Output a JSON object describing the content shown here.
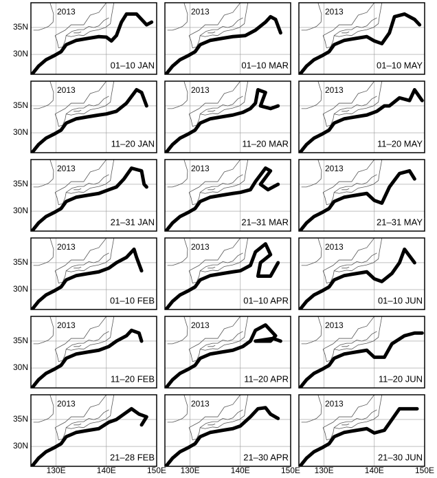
{
  "year": "2013",
  "lon_range": [
    125,
    150
  ],
  "lat_range": [
    26.3,
    39.6
  ],
  "lon_ticks": [
    {
      "value": 130,
      "label": "130E"
    },
    {
      "value": 140,
      "label": "140E"
    },
    {
      "value": 150,
      "label": "150E"
    }
  ],
  "lat_ticks": [
    {
      "value": 35,
      "label": "35N"
    },
    {
      "value": 30,
      "label": "30N"
    }
  ],
  "panels": [
    {
      "period": "01–10 JAN",
      "path": [
        [
          125.3,
          26.4
        ],
        [
          126.5,
          27.8
        ],
        [
          128,
          29
        ],
        [
          129.5,
          29.7
        ],
        [
          131,
          30.5
        ],
        [
          132,
          31.8
        ],
        [
          134,
          32.6
        ],
        [
          136.5,
          33
        ],
        [
          138.5,
          33.3
        ],
        [
          140,
          33.2
        ],
        [
          141,
          32.5
        ],
        [
          142,
          33.5
        ],
        [
          143,
          36
        ],
        [
          144,
          37.5
        ],
        [
          146,
          37.5
        ],
        [
          148,
          35.5
        ],
        [
          149,
          36
        ]
      ]
    },
    {
      "period": "01–10 MAR",
      "path": [
        [
          125.3,
          26.4
        ],
        [
          126.5,
          27.8
        ],
        [
          128,
          29
        ],
        [
          129.5,
          29.7
        ],
        [
          131,
          30.5
        ],
        [
          132,
          31.8
        ],
        [
          134,
          32.6
        ],
        [
          136.5,
          33
        ],
        [
          138.5,
          33.3
        ],
        [
          141,
          33.5
        ],
        [
          143,
          34.5
        ],
        [
          145,
          36
        ],
        [
          146,
          37
        ],
        [
          147,
          36.5
        ],
        [
          148,
          34
        ]
      ]
    },
    {
      "period": "01–10 MAY",
      "path": [
        [
          125.3,
          26.4
        ],
        [
          126.5,
          27.8
        ],
        [
          128,
          29
        ],
        [
          129.5,
          29.7
        ],
        [
          131,
          30.5
        ],
        [
          132,
          31.8
        ],
        [
          134,
          32.6
        ],
        [
          136.5,
          33
        ],
        [
          138.5,
          33.3
        ],
        [
          140,
          32.5
        ],
        [
          141.5,
          32
        ],
        [
          143,
          34
        ],
        [
          144,
          37
        ],
        [
          146,
          37.5
        ],
        [
          148,
          36.5
        ],
        [
          149,
          35.5
        ]
      ]
    },
    {
      "period": "11–20 JAN",
      "path": [
        [
          125.3,
          26.4
        ],
        [
          126.5,
          27.8
        ],
        [
          128,
          29
        ],
        [
          129.5,
          29.7
        ],
        [
          131,
          30.5
        ],
        [
          132,
          31.8
        ],
        [
          134,
          32.6
        ],
        [
          136.5,
          33
        ],
        [
          138.5,
          33.3
        ],
        [
          140,
          33.5
        ],
        [
          142,
          34
        ],
        [
          144,
          35.5
        ],
        [
          146,
          38
        ],
        [
          147,
          37.5
        ],
        [
          148,
          35
        ]
      ]
    },
    {
      "period": "11–20 MAR",
      "path": [
        [
          125.3,
          26.4
        ],
        [
          126.5,
          27.8
        ],
        [
          128,
          29
        ],
        [
          129.5,
          29.7
        ],
        [
          131,
          30.5
        ],
        [
          132,
          31.8
        ],
        [
          134,
          32.6
        ],
        [
          136.5,
          33
        ],
        [
          138.5,
          33.3
        ],
        [
          140.5,
          33.8
        ],
        [
          142,
          34.5
        ],
        [
          143,
          35.5
        ],
        [
          143.5,
          38
        ],
        [
          145,
          37.5
        ],
        [
          144,
          35
        ],
        [
          146,
          34.5
        ],
        [
          147.5,
          35
        ]
      ]
    },
    {
      "period": "11–20 MAY",
      "path": [
        [
          125.3,
          26.4
        ],
        [
          126.5,
          27.8
        ],
        [
          128,
          29
        ],
        [
          129.5,
          29.7
        ],
        [
          131,
          30.5
        ],
        [
          132,
          31.8
        ],
        [
          134,
          32.6
        ],
        [
          136.5,
          33
        ],
        [
          138.5,
          33.3
        ],
        [
          140.5,
          34
        ],
        [
          142,
          35
        ],
        [
          143,
          35
        ],
        [
          145,
          36.5
        ],
        [
          147,
          36
        ],
        [
          148,
          38
        ],
        [
          149.5,
          36
        ]
      ]
    },
    {
      "period": "21–31 JAN",
      "path": [
        [
          125.3,
          26.4
        ],
        [
          126.5,
          27.8
        ],
        [
          128,
          29
        ],
        [
          129.5,
          29.7
        ],
        [
          131,
          30.5
        ],
        [
          132,
          31.8
        ],
        [
          134,
          32.6
        ],
        [
          136.5,
          33
        ],
        [
          138.5,
          33.3
        ],
        [
          140.5,
          34
        ],
        [
          142,
          34.5
        ],
        [
          143.5,
          36
        ],
        [
          145,
          38
        ],
        [
          147,
          37.5
        ],
        [
          147.5,
          35
        ],
        [
          148,
          34.5
        ]
      ]
    },
    {
      "period": "21–31 MAR",
      "path": [
        [
          125.3,
          26.4
        ],
        [
          126.5,
          27.8
        ],
        [
          128,
          29
        ],
        [
          129.5,
          29.7
        ],
        [
          131,
          30.5
        ],
        [
          132,
          31.8
        ],
        [
          134,
          32.6
        ],
        [
          136.5,
          33
        ],
        [
          138.5,
          33.3
        ],
        [
          140,
          33.5
        ],
        [
          142,
          34
        ],
        [
          143,
          35.5
        ],
        [
          145,
          38
        ],
        [
          146,
          37.5
        ],
        [
          144,
          35
        ],
        [
          145.5,
          34
        ],
        [
          147.5,
          35
        ]
      ]
    },
    {
      "period": "21–31 MAY",
      "path": [
        [
          125.3,
          26.4
        ],
        [
          126.5,
          27.8
        ],
        [
          128,
          29
        ],
        [
          129.5,
          29.7
        ],
        [
          131,
          30.5
        ],
        [
          132,
          31.8
        ],
        [
          134,
          32.6
        ],
        [
          136.5,
          33
        ],
        [
          138.5,
          33.3
        ],
        [
          140,
          32
        ],
        [
          141.5,
          31.5
        ],
        [
          143,
          34.5
        ],
        [
          145,
          37
        ],
        [
          147,
          37.5
        ],
        [
          148,
          36
        ]
      ]
    },
    {
      "period": "01–10 FEB",
      "path": [
        [
          125.3,
          26.4
        ],
        [
          126.5,
          27.8
        ],
        [
          128,
          29
        ],
        [
          129.5,
          29.7
        ],
        [
          131,
          30.5
        ],
        [
          132,
          31.8
        ],
        [
          134,
          32.6
        ],
        [
          136.5,
          33
        ],
        [
          138.5,
          33.3
        ],
        [
          140.5,
          34
        ],
        [
          142,
          35
        ],
        [
          144,
          36
        ],
        [
          145.5,
          37.5
        ],
        [
          146,
          36
        ],
        [
          147,
          33.5
        ]
      ]
    },
    {
      "period": "01–10 APR",
      "path": [
        [
          125.3,
          26.4
        ],
        [
          126.5,
          27.8
        ],
        [
          128,
          29
        ],
        [
          129.5,
          29.7
        ],
        [
          131,
          30.5
        ],
        [
          132,
          31.8
        ],
        [
          134,
          32.6
        ],
        [
          136.5,
          33
        ],
        [
          138.5,
          33.3
        ],
        [
          140,
          33.5
        ],
        [
          142,
          34.5
        ],
        [
          143,
          37
        ],
        [
          145,
          38.5
        ],
        [
          146,
          36.5
        ],
        [
          144,
          35
        ],
        [
          143.5,
          32.5
        ],
        [
          146,
          32.5
        ],
        [
          147.5,
          35
        ]
      ]
    },
    {
      "period": "01–10 JUN",
      "path": [
        [
          125.3,
          26.4
        ],
        [
          126.5,
          27.8
        ],
        [
          128,
          29
        ],
        [
          129.5,
          29.7
        ],
        [
          131,
          30.5
        ],
        [
          132,
          31.8
        ],
        [
          134,
          32.6
        ],
        [
          136.5,
          33
        ],
        [
          138.5,
          33.3
        ],
        [
          140,
          32
        ],
        [
          141.5,
          31.5
        ],
        [
          143.5,
          33
        ],
        [
          145,
          35
        ],
        [
          146,
          37.5
        ],
        [
          148,
          35
        ]
      ]
    },
    {
      "period": "11–20 FEB",
      "path": [
        [
          125.3,
          26.4
        ],
        [
          126.5,
          27.8
        ],
        [
          128,
          29
        ],
        [
          129.5,
          29.7
        ],
        [
          131,
          30.5
        ],
        [
          132,
          31.8
        ],
        [
          134,
          32.6
        ],
        [
          136.5,
          33
        ],
        [
          138.5,
          33.3
        ],
        [
          140.5,
          34
        ],
        [
          142,
          35
        ],
        [
          144,
          36
        ],
        [
          145,
          37
        ],
        [
          146.5,
          36.5
        ],
        [
          147,
          35
        ]
      ]
    },
    {
      "period": "11–20 APR",
      "path": [
        [
          125.3,
          26.4
        ],
        [
          126.5,
          27.8
        ],
        [
          128,
          29
        ],
        [
          129.5,
          29.7
        ],
        [
          131,
          30.5
        ],
        [
          132,
          31.8
        ],
        [
          134,
          32.6
        ],
        [
          136.5,
          33
        ],
        [
          138.5,
          33.3
        ],
        [
          140.5,
          34
        ],
        [
          142,
          35
        ],
        [
          143,
          37
        ],
        [
          145,
          38
        ],
        [
          147,
          36
        ],
        [
          146,
          35
        ],
        [
          143,
          35
        ],
        [
          146.5,
          35.5
        ],
        [
          148,
          35
        ]
      ]
    },
    {
      "period": "11–20 JUN",
      "path": [
        [
          125.3,
          26.4
        ],
        [
          126.5,
          27.8
        ],
        [
          128,
          29
        ],
        [
          129.5,
          29.7
        ],
        [
          131,
          30.5
        ],
        [
          132,
          31.8
        ],
        [
          134,
          32.6
        ],
        [
          136.5,
          33
        ],
        [
          138.5,
          33.3
        ],
        [
          140,
          32
        ],
        [
          142,
          32
        ],
        [
          143.5,
          34.5
        ],
        [
          146,
          36
        ],
        [
          148,
          36.5
        ],
        [
          149.5,
          36.5
        ]
      ]
    },
    {
      "period": "21–28 FEB",
      "path": [
        [
          125.3,
          26.4
        ],
        [
          126.5,
          27.8
        ],
        [
          128,
          29
        ],
        [
          129.5,
          29.7
        ],
        [
          131,
          30.5
        ],
        [
          132,
          31.8
        ],
        [
          134,
          32.6
        ],
        [
          136.5,
          33
        ],
        [
          138.5,
          33.3
        ],
        [
          140.5,
          34.5
        ],
        [
          142,
          35
        ],
        [
          143.5,
          36
        ],
        [
          145,
          37
        ],
        [
          146.5,
          36
        ],
        [
          148,
          35.5
        ],
        [
          147,
          34
        ]
      ]
    },
    {
      "period": "21–30 APR",
      "path": [
        [
          125.3,
          26.4
        ],
        [
          126.5,
          27.8
        ],
        [
          128,
          29
        ],
        [
          129.5,
          29.7
        ],
        [
          131,
          30.5
        ],
        [
          132,
          31.8
        ],
        [
          134,
          32.6
        ],
        [
          136.5,
          33
        ],
        [
          138.5,
          33.3
        ],
        [
          140,
          33.8
        ],
        [
          142,
          35.5
        ],
        [
          143.5,
          37
        ],
        [
          145,
          37.2
        ],
        [
          146,
          36
        ],
        [
          147.5,
          35.2
        ]
      ]
    },
    {
      "period": "21–30 JUN",
      "path": [
        [
          125.3,
          26.4
        ],
        [
          126.5,
          27.8
        ],
        [
          128,
          29
        ],
        [
          129.5,
          29.7
        ],
        [
          131,
          30.5
        ],
        [
          132,
          31.8
        ],
        [
          134,
          32.6
        ],
        [
          136.5,
          33
        ],
        [
          138.5,
          33.3
        ],
        [
          140,
          32.5
        ],
        [
          142,
          33
        ],
        [
          143.5,
          35
        ],
        [
          145,
          37
        ],
        [
          147,
          37
        ],
        [
          148.5,
          37
        ]
      ]
    }
  ]
}
